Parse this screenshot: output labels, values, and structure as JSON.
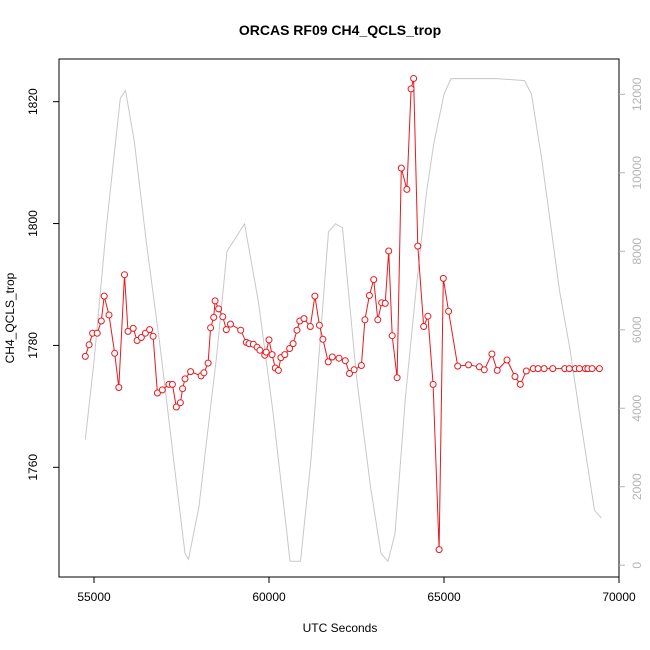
{
  "chart_data": {
    "type": "line",
    "title": "ORCAS RF09 CH4_QCLS_trop",
    "xlabel": "UTC Seconds",
    "ylabel": "CH4_QCLS_trop",
    "xlim": [
      54000,
      70000
    ],
    "ylim": [
      1742,
      1827
    ],
    "y2lim": [
      -300,
      12900
    ],
    "x_ticks": [
      55000,
      60000,
      65000,
      70000
    ],
    "y_ticks": [
      1760,
      1780,
      1800,
      1820
    ],
    "y2_ticks": [
      0,
      2000,
      4000,
      6000,
      8000,
      10000,
      12000
    ],
    "grid": false,
    "series": [
      {
        "role": "CH4",
        "axis": "left",
        "color": "#e8191e",
        "style": "line+points",
        "x": [
          54750,
          54860,
          54960,
          55090,
          55210,
          55290,
          55430,
          55590,
          55710,
          55870,
          55970,
          56120,
          56230,
          56350,
          56470,
          56590,
          56690,
          56810,
          56950,
          57140,
          57240,
          57350,
          57470,
          57530,
          57600,
          57760,
          58060,
          58140,
          58260,
          58330,
          58420,
          58460,
          58560,
          58680,
          58780,
          58900,
          59190,
          59350,
          59430,
          59550,
          59660,
          59740,
          59880,
          59920,
          60000,
          60090,
          60180,
          60270,
          60340,
          60450,
          60590,
          60690,
          60800,
          60880,
          61000,
          61180,
          61310,
          61440,
          61540,
          61690,
          61810,
          62000,
          62180,
          62300,
          62430,
          62640,
          62740,
          62870,
          62990,
          63110,
          63220,
          63320,
          63420,
          63520,
          63660,
          63780,
          63940,
          64060,
          64130,
          64250,
          64420,
          64540,
          64690,
          64860,
          64980,
          65130,
          65390,
          65700,
          66010,
          66150,
          66370,
          66520,
          66800,
          67030,
          67180,
          67350,
          67550,
          67690,
          67860,
          68110,
          68450,
          68580,
          68750,
          68870,
          69040,
          69110,
          69230,
          69440
        ],
        "y": [
          1778.2,
          1780.1,
          1782.0,
          1782.0,
          1784.0,
          1788.1,
          1785.0,
          1778.7,
          1773.1,
          1791.6,
          1782.3,
          1782.8,
          1780.8,
          1781.3,
          1782.0,
          1782.6,
          1781.5,
          1772.2,
          1772.7,
          1773.6,
          1773.6,
          1769.9,
          1770.6,
          1772.9,
          1774.5,
          1775.7,
          1775.0,
          1775.5,
          1777.1,
          1782.9,
          1784.6,
          1787.3,
          1786.0,
          1784.7,
          1782.6,
          1783.5,
          1782.5,
          1780.5,
          1780.3,
          1780.2,
          1779.7,
          1779.2,
          1778.4,
          1778.9,
          1780.9,
          1778.5,
          1776.3,
          1775.9,
          1778.0,
          1778.5,
          1779.5,
          1780.3,
          1782.5,
          1784.0,
          1784.4,
          1783.1,
          1788.1,
          1783.3,
          1781.0,
          1777.3,
          1778.1,
          1777.9,
          1777.5,
          1775.4,
          1776.0,
          1776.7,
          1784.2,
          1788.2,
          1790.8,
          1784.2,
          1787.0,
          1786.9,
          1795.5,
          1781.6,
          1774.7,
          1809.1,
          1805.6,
          1822.1,
          1823.8,
          1796.3,
          1783.1,
          1784.8,
          1773.6,
          1746.5,
          1791.0,
          1785.6,
          1776.6,
          1776.8,
          1776.5,
          1776.0,
          1778.6,
          1775.9,
          1777.6,
          1774.9,
          1773.6,
          1775.8,
          1776.2,
          1776.2,
          1776.2,
          1776.2,
          1776.2,
          1776.2,
          1776.2,
          1776.2,
          1776.2,
          1776.2,
          1776.2,
          1776.2
        ]
      },
      {
        "role": "altitude",
        "axis": "right",
        "color": "#c8c8c8",
        "style": "line",
        "x": [
          54750,
          55000,
          55350,
          55750,
          55900,
          56150,
          56500,
          56900,
          57300,
          57600,
          57700,
          58000,
          58300,
          58500,
          58800,
          59300,
          59700,
          60100,
          60500,
          60600,
          60900,
          61200,
          61700,
          61900,
          62100,
          62500,
          62900,
          63200,
          63400,
          63600,
          63900,
          64200,
          64500,
          64700,
          65000,
          65200,
          65600,
          66500,
          67300,
          67500,
          67800,
          68300,
          68600,
          68900,
          69300,
          69500
        ],
        "y": [
          3200,
          5200,
          8600,
          11900,
          12100,
          10800,
          8200,
          5500,
          2500,
          300,
          150,
          1500,
          3800,
          5300,
          8000,
          8700,
          6700,
          4000,
          900,
          100,
          100,
          2700,
          8500,
          8700,
          8600,
          4800,
          2000,
          300,
          100,
          800,
          4300,
          7000,
          9500,
          10700,
          12000,
          12400,
          12400,
          12400,
          12350,
          12000,
          10300,
          7000,
          5500,
          3700,
          1400,
          1200
        ]
      }
    ]
  }
}
